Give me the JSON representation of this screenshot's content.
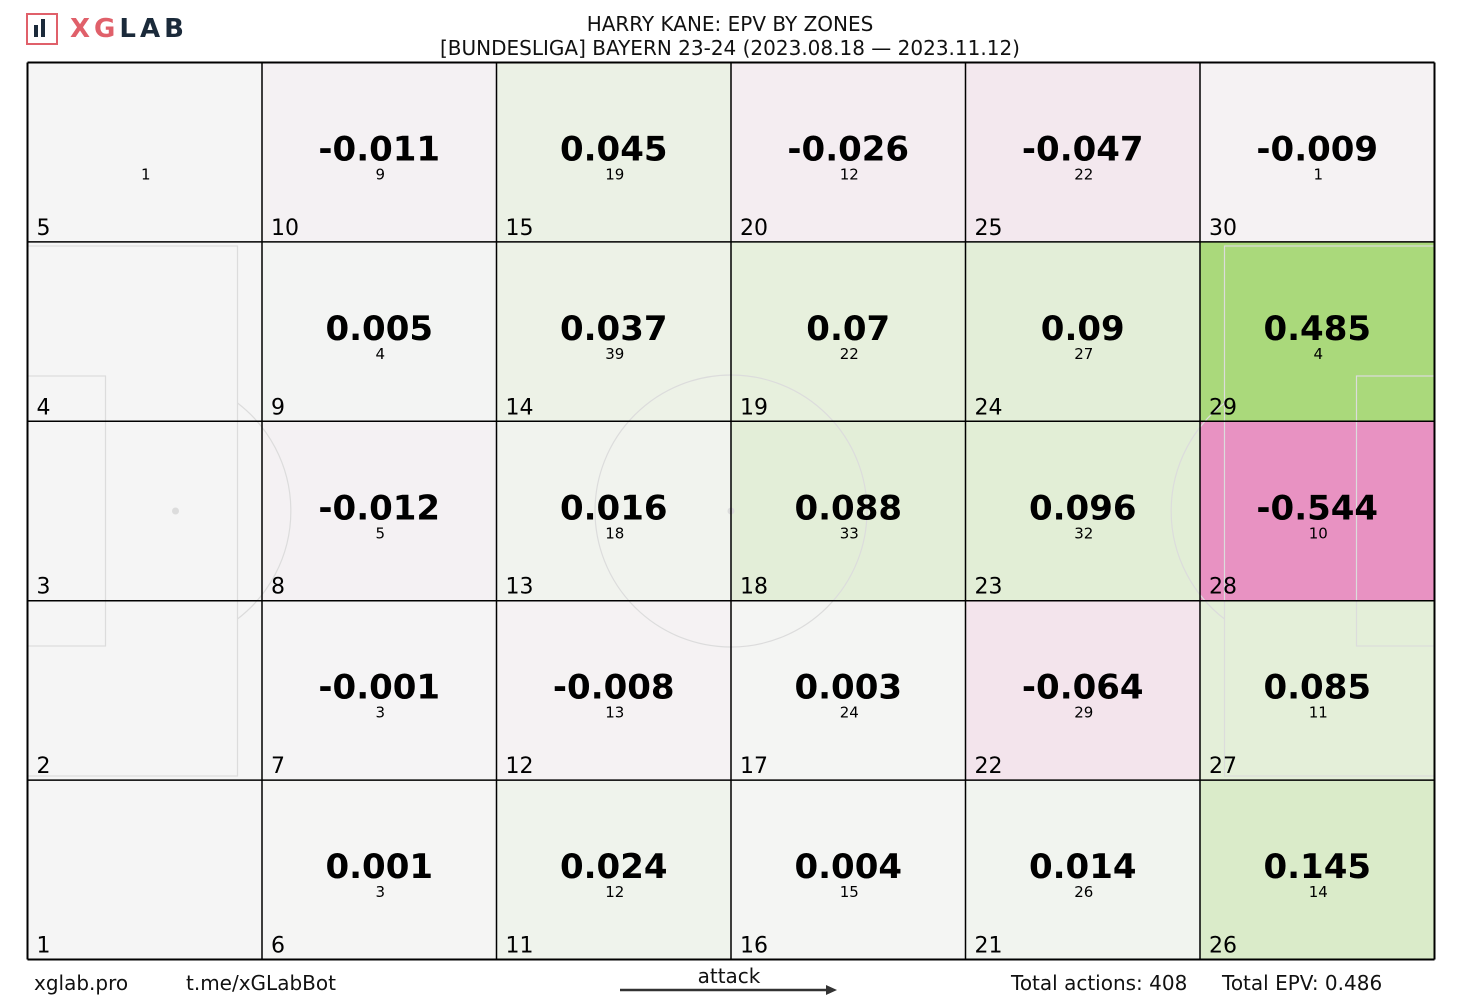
{
  "brand": {
    "name_part1": "XG",
    "name_part2": "LAB"
  },
  "title": {
    "line1": "HARRY KANE: EPV BY ZONES",
    "line2": "[BUNDESLIGA] BAYERN 23-24 (2023.08.18 — 2023.11.12)"
  },
  "footer": {
    "site": "xglab.pro",
    "bot": "t.me/xGLabBot",
    "attack": "attack",
    "total_actions": "Total actions: 408",
    "total_epv": "Total EPV: 0.486"
  },
  "colors": {
    "positive_max": "#a8d878",
    "negative_max": "#e892c2",
    "neutral": "#f5f5f5",
    "grid": "#000000"
  },
  "chart_data": {
    "type": "heatmap",
    "title": "HARRY KANE: EPV BY ZONES",
    "subtitle": "[BUNDESLIGA] BAYERN 23-24 (2023.08.18 — 2023.11.12)",
    "columns": 6,
    "rows": 5,
    "zones": [
      {
        "zone": 5,
        "epv": null,
        "actions": 1
      },
      {
        "zone": 10,
        "epv": -0.011,
        "actions": 9
      },
      {
        "zone": 15,
        "epv": 0.045,
        "actions": 19
      },
      {
        "zone": 20,
        "epv": -0.026,
        "actions": 12
      },
      {
        "zone": 25,
        "epv": -0.047,
        "actions": 22
      },
      {
        "zone": 30,
        "epv": -0.009,
        "actions": 1
      },
      {
        "zone": 4,
        "epv": null,
        "actions": null
      },
      {
        "zone": 9,
        "epv": 0.005,
        "actions": 4
      },
      {
        "zone": 14,
        "epv": 0.037,
        "actions": 39
      },
      {
        "zone": 19,
        "epv": 0.07,
        "actions": 22
      },
      {
        "zone": 24,
        "epv": 0.09,
        "actions": 27
      },
      {
        "zone": 29,
        "epv": 0.485,
        "actions": 4
      },
      {
        "zone": 3,
        "epv": null,
        "actions": null
      },
      {
        "zone": 8,
        "epv": -0.012,
        "actions": 5
      },
      {
        "zone": 13,
        "epv": 0.016,
        "actions": 18
      },
      {
        "zone": 18,
        "epv": 0.088,
        "actions": 33
      },
      {
        "zone": 23,
        "epv": 0.096,
        "actions": 32
      },
      {
        "zone": 28,
        "epv": -0.544,
        "actions": 10
      },
      {
        "zone": 2,
        "epv": null,
        "actions": null
      },
      {
        "zone": 7,
        "epv": -0.001,
        "actions": 3
      },
      {
        "zone": 12,
        "epv": -0.008,
        "actions": 13
      },
      {
        "zone": 17,
        "epv": 0.003,
        "actions": 24
      },
      {
        "zone": 22,
        "epv": -0.064,
        "actions": 29
      },
      {
        "zone": 27,
        "epv": 0.085,
        "actions": 11
      },
      {
        "zone": 1,
        "epv": null,
        "actions": null
      },
      {
        "zone": 6,
        "epv": 0.001,
        "actions": 3
      },
      {
        "zone": 11,
        "epv": 0.024,
        "actions": 12
      },
      {
        "zone": 16,
        "epv": 0.004,
        "actions": 15
      },
      {
        "zone": 21,
        "epv": 0.014,
        "actions": 26
      },
      {
        "zone": 26,
        "epv": 0.145,
        "actions": 14
      }
    ]
  }
}
